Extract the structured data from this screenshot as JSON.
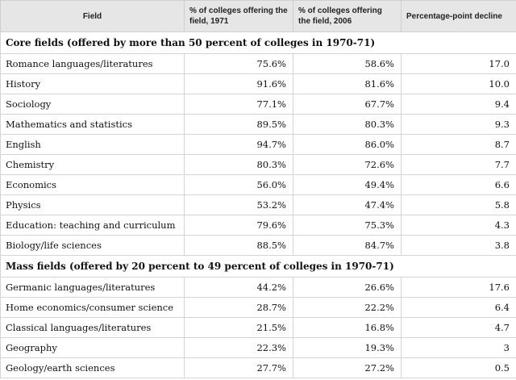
{
  "table": {
    "headers": {
      "field": "Field",
      "pct_1971": "% of colleges offering the field, 1971",
      "pct_2006": "% of colleges offering the field, 2006",
      "decline": "Percentage-point decline"
    },
    "sections": [
      {
        "title": "Core fields (offered by more than 50 percent of colleges in 1970-71)",
        "rows": [
          {
            "field": "Romance languages/literatures",
            "pct_1971": "75.6%",
            "pct_2006": "58.6%",
            "decline": "17.0"
          },
          {
            "field": "History",
            "pct_1971": "91.6%",
            "pct_2006": "81.6%",
            "decline": "10.0"
          },
          {
            "field": "Sociology",
            "pct_1971": "77.1%",
            "pct_2006": "67.7%",
            "decline": "9.4"
          },
          {
            "field": "Mathematics and statistics",
            "pct_1971": "89.5%",
            "pct_2006": "80.3%",
            "decline": "9.3"
          },
          {
            "field": "English",
            "pct_1971": "94.7%",
            "pct_2006": "86.0%",
            "decline": "8.7"
          },
          {
            "field": "Chemistry",
            "pct_1971": "80.3%",
            "pct_2006": "72.6%",
            "decline": "7.7"
          },
          {
            "field": "Economics",
            "pct_1971": "56.0%",
            "pct_2006": "49.4%",
            "decline": "6.6"
          },
          {
            "field": "Physics",
            "pct_1971": "53.2%",
            "pct_2006": "47.4%",
            "decline": "5.8"
          },
          {
            "field": "Education: teaching and curriculum",
            "pct_1971": "79.6%",
            "pct_2006": "75.3%",
            "decline": "4.3"
          },
          {
            "field": "Biology/life sciences",
            "pct_1971": "88.5%",
            "pct_2006": "84.7%",
            "decline": "3.8"
          }
        ]
      },
      {
        "title": "Mass fields (offered by 20 percent to 49 percent of colleges in 1970-71)",
        "rows": [
          {
            "field": "Germanic languages/literatures",
            "pct_1971": "44.2%",
            "pct_2006": "26.6%",
            "decline": "17.6"
          },
          {
            "field": "Home economics/consumer science",
            "pct_1971": "28.7%",
            "pct_2006": "22.2%",
            "decline": "6.4"
          },
          {
            "field": "Classical languages/literatures",
            "pct_1971": "21.5%",
            "pct_2006": "16.8%",
            "decline": "4.7"
          },
          {
            "field": "Geography",
            "pct_1971": "22.3%",
            "pct_2006": "19.3%",
            "decline": "3"
          },
          {
            "field": "Geology/earth sciences",
            "pct_1971": "27.7%",
            "pct_2006": "27.2%",
            "decline": "0.5"
          }
        ]
      }
    ]
  }
}
